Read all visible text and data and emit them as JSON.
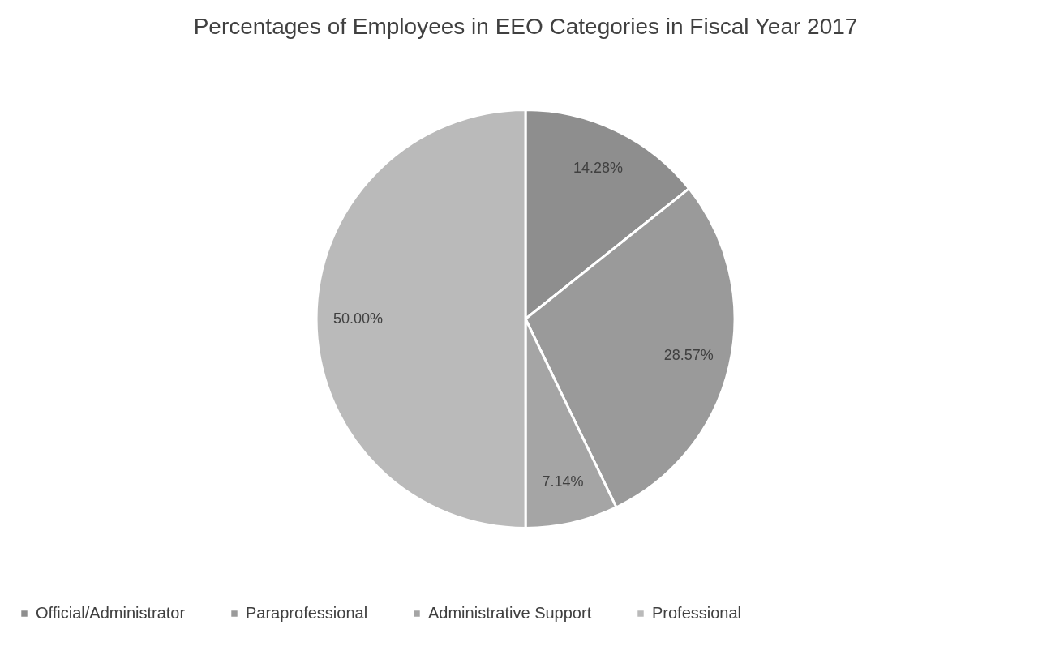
{
  "chart_data": {
    "type": "pie",
    "title": "Percentages of Employees in EEO Categories in Fiscal Year 2017",
    "categories": [
      "Official/Administrator",
      "Paraprofessional",
      "Administrative Support",
      "Professional"
    ],
    "values": [
      14.28,
      28.57,
      7.14,
      50.0
    ],
    "colors": [
      "#8e8e8e",
      "#9a9a9a",
      "#a5a5a5",
      "#bababa"
    ],
    "value_labels": [
      "14.28%",
      "28.57%",
      "7.14%",
      "50.00%"
    ],
    "legend": "bottom"
  }
}
